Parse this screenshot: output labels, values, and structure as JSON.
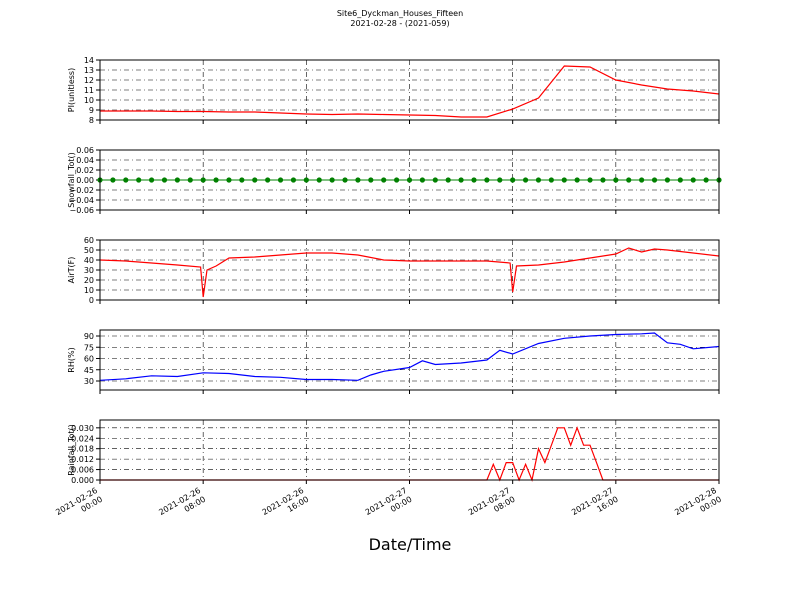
{
  "chart_data": [
    {
      "type": "line",
      "title": "Site6_Dyckman_Houses_Fifteen",
      "subtitle": "2021-02-28 - (2021-059)",
      "ylabel": "PI(unitless)",
      "xlim": [
        "2021-02-26 00:00",
        "2021-02-28 00:00"
      ],
      "xticks": [
        "2021-02-26 00:00",
        "2021-02-26 08:00",
        "2021-02-26 16:00",
        "2021-02-27 00:00",
        "2021-02-27 08:00",
        "2021-02-27 16:00",
        "2021-02-28 00:00"
      ],
      "ylim": [
        8,
        14
      ],
      "yticks": [
        8,
        9,
        10,
        11,
        12,
        13,
        14
      ],
      "grid": true,
      "x": [
        "2021-02-26 00:00",
        "2021-02-26 02:00",
        "2021-02-26 04:00",
        "2021-02-26 06:00",
        "2021-02-26 08:00",
        "2021-02-26 10:00",
        "2021-02-26 12:00",
        "2021-02-26 14:00",
        "2021-02-26 16:00",
        "2021-02-26 18:00",
        "2021-02-26 20:00",
        "2021-02-26 22:00",
        "2021-02-27 00:00",
        "2021-02-27 02:00",
        "2021-02-27 04:00",
        "2021-02-27 06:00",
        "2021-02-27 08:00",
        "2021-02-27 10:00",
        "2021-02-27 12:00",
        "2021-02-27 14:00",
        "2021-02-27 16:00",
        "2021-02-27 18:00",
        "2021-02-27 20:00",
        "2021-02-27 22:00",
        "2021-02-28 00:00"
      ],
      "series": [
        {
          "color": "#ff0000",
          "marker": false,
          "values": [
            8.9,
            8.9,
            8.9,
            8.85,
            8.85,
            8.8,
            8.8,
            8.7,
            8.6,
            8.55,
            8.6,
            8.55,
            8.5,
            8.45,
            8.3,
            8.3,
            9.1,
            10.2,
            13.4,
            13.3,
            12.0,
            11.5,
            11.1,
            10.9,
            10.6
          ]
        }
      ]
    },
    {
      "type": "line",
      "ylabel": "Snowfall_Tot()",
      "xlim": [
        "2021-02-26 00:00",
        "2021-02-28 00:00"
      ],
      "xticks": [
        "2021-02-26 00:00",
        "2021-02-26 08:00",
        "2021-02-26 16:00",
        "2021-02-27 00:00",
        "2021-02-27 08:00",
        "2021-02-27 16:00",
        "2021-02-28 00:00"
      ],
      "ylim": [
        -0.06,
        0.06
      ],
      "yticks": [
        {
          "value": -0.06,
          "label": "−0.06"
        },
        {
          "value": -0.04,
          "label": "−0.04"
        },
        {
          "value": -0.02,
          "label": "−0.02"
        },
        {
          "value": 0,
          "label": "0.00"
        },
        0.02,
        0.04,
        0.06
      ],
      "grid": true,
      "x": [
        "2021-02-26 00:00",
        "2021-02-26 01:00",
        "2021-02-26 02:00",
        "2021-02-26 03:00",
        "2021-02-26 04:00",
        "2021-02-26 05:00",
        "2021-02-26 06:00",
        "2021-02-26 07:00",
        "2021-02-26 08:00",
        "2021-02-26 09:00",
        "2021-02-26 10:00",
        "2021-02-26 11:00",
        "2021-02-26 12:00",
        "2021-02-26 13:00",
        "2021-02-26 14:00",
        "2021-02-26 15:00",
        "2021-02-26 16:00",
        "2021-02-26 17:00",
        "2021-02-26 18:00",
        "2021-02-26 19:00",
        "2021-02-26 20:00",
        "2021-02-26 21:00",
        "2021-02-26 22:00",
        "2021-02-26 23:00",
        "2021-02-27 00:00",
        "2021-02-27 01:00",
        "2021-02-27 02:00",
        "2021-02-27 03:00",
        "2021-02-27 04:00",
        "2021-02-27 05:00",
        "2021-02-27 06:00",
        "2021-02-27 07:00",
        "2021-02-27 08:00",
        "2021-02-27 09:00",
        "2021-02-27 10:00",
        "2021-02-27 11:00",
        "2021-02-27 12:00",
        "2021-02-27 13:00",
        "2021-02-27 14:00",
        "2021-02-27 15:00",
        "2021-02-27 16:00",
        "2021-02-27 17:00",
        "2021-02-27 18:00",
        "2021-02-27 19:00",
        "2021-02-27 20:00",
        "2021-02-27 21:00",
        "2021-02-27 22:00",
        "2021-02-27 23:00",
        "2021-02-28 00:00"
      ],
      "series": [
        {
          "color": "#008000",
          "marker": true,
          "values": [
            0,
            0,
            0,
            0,
            0,
            0,
            0,
            0,
            0,
            0,
            0,
            0,
            0,
            0,
            0,
            0,
            0,
            0,
            0,
            0,
            0,
            0,
            0,
            0,
            0,
            0,
            0,
            0,
            0,
            0,
            0,
            0,
            0,
            0,
            0,
            0,
            0,
            0,
            0,
            0,
            0,
            0,
            0,
            0,
            0,
            0,
            0,
            0,
            0
          ]
        }
      ]
    },
    {
      "type": "line",
      "ylabel": "AirT(F)",
      "xlim": [
        "2021-02-26 00:00",
        "2021-02-28 00:00"
      ],
      "xticks": [
        "2021-02-26 00:00",
        "2021-02-26 08:00",
        "2021-02-26 16:00",
        "2021-02-27 00:00",
        "2021-02-27 08:00",
        "2021-02-27 16:00",
        "2021-02-28 00:00"
      ],
      "ylim": [
        0,
        60
      ],
      "yticks": [
        0,
        10,
        20,
        30,
        40,
        50,
        60
      ],
      "grid": true,
      "x": [
        "2021-02-26 00:00",
        "2021-02-26 02:00",
        "2021-02-26 04:00",
        "2021-02-26 06:00",
        "2021-02-26 07:48",
        "2021-02-26 08:00",
        "2021-02-26 08:18",
        "2021-02-26 09:00",
        "2021-02-26 10:00",
        "2021-02-26 12:00",
        "2021-02-26 14:00",
        "2021-02-26 16:00",
        "2021-02-26 18:00",
        "2021-02-26 20:00",
        "2021-02-26 22:00",
        "2021-02-27 00:00",
        "2021-02-27 02:00",
        "2021-02-27 04:00",
        "2021-02-27 06:00",
        "2021-02-27 07:48",
        "2021-02-27 08:00",
        "2021-02-27 08:18",
        "2021-02-27 10:00",
        "2021-02-27 12:00",
        "2021-02-27 14:00",
        "2021-02-27 16:00",
        "2021-02-27 17:00",
        "2021-02-27 18:00",
        "2021-02-27 19:00",
        "2021-02-27 20:00",
        "2021-02-27 22:00",
        "2021-02-28 00:00"
      ],
      "series": [
        {
          "color": "#ff0000",
          "marker": false,
          "values": [
            40,
            39,
            37,
            35,
            33,
            3,
            30,
            34,
            42,
            43,
            45,
            47,
            47,
            45,
            40,
            39,
            39,
            39,
            39,
            37,
            8,
            34,
            35,
            38,
            42,
            46,
            52,
            48,
            51,
            50,
            47,
            44
          ]
        }
      ]
    },
    {
      "type": "line",
      "ylabel": "RH(%)",
      "xlim": [
        "2021-02-26 00:00",
        "2021-02-28 00:00"
      ],
      "xticks": [
        "2021-02-26 00:00",
        "2021-02-26 08:00",
        "2021-02-26 16:00",
        "2021-02-27 00:00",
        "2021-02-27 08:00",
        "2021-02-27 16:00",
        "2021-02-28 00:00"
      ],
      "ylim": [
        18,
        98
      ],
      "yticks": [
        30,
        45,
        60,
        75,
        90
      ],
      "grid": true,
      "x": [
        "2021-02-26 00:00",
        "2021-02-26 02:00",
        "2021-02-26 04:00",
        "2021-02-26 06:00",
        "2021-02-26 08:00",
        "2021-02-26 10:00",
        "2021-02-26 12:00",
        "2021-02-26 14:00",
        "2021-02-26 16:00",
        "2021-02-26 18:00",
        "2021-02-26 20:00",
        "2021-02-26 21:00",
        "2021-02-26 22:00",
        "2021-02-27 00:00",
        "2021-02-27 01:00",
        "2021-02-27 02:00",
        "2021-02-27 04:00",
        "2021-02-27 06:00",
        "2021-02-27 07:00",
        "2021-02-27 08:00",
        "2021-02-27 10:00",
        "2021-02-27 12:00",
        "2021-02-27 14:00",
        "2021-02-27 16:00",
        "2021-02-27 18:00",
        "2021-02-27 19:00",
        "2021-02-27 20:00",
        "2021-02-27 21:00",
        "2021-02-27 22:00",
        "2021-02-28 00:00"
      ],
      "series": [
        {
          "color": "#0000ff",
          "marker": false,
          "values": [
            31,
            33,
            37,
            36,
            41,
            40,
            36,
            35,
            32,
            32,
            31,
            38,
            43,
            48,
            57,
            52,
            54,
            58,
            71,
            66,
            80,
            87,
            90,
            92,
            93,
            94,
            81,
            79,
            73,
            76
          ]
        }
      ]
    },
    {
      "type": "line",
      "ylabel": "Rainfall_Tot()",
      "xlabel": "Date/Time",
      "xlim": [
        "2021-02-26 00:00",
        "2021-02-28 00:00"
      ],
      "xticks": [
        {
          "value": "2021-02-26 00:00",
          "label": "2021-02-26\n00:00"
        },
        {
          "value": "2021-02-26 08:00",
          "label": "2021-02-26\n08:00"
        },
        {
          "value": "2021-02-26 16:00",
          "label": "2021-02-26\n16:00"
        },
        {
          "value": "2021-02-27 00:00",
          "label": "2021-02-27\n00:00"
        },
        {
          "value": "2021-02-27 08:00",
          "label": "2021-02-27\n08:00"
        },
        {
          "value": "2021-02-27 16:00",
          "label": "2021-02-27\n16:00"
        },
        {
          "value": "2021-02-28 00:00",
          "label": "2021-02-28\n00:00"
        }
      ],
      "ylim": [
        0,
        0.0345
      ],
      "yticks": [
        {
          "value": 0,
          "label": "0.000"
        },
        {
          "value": 0.006,
          "label": "0.006"
        },
        {
          "value": 0.012,
          "label": "0.012"
        },
        {
          "value": 0.018,
          "label": "0.018"
        },
        {
          "value": 0.024,
          "label": "0.024"
        },
        {
          "value": 0.03,
          "label": "0.030"
        }
      ],
      "grid": true,
      "x": [
        "2021-02-26 00:00",
        "2021-02-27 06:00",
        "2021-02-27 06:30",
        "2021-02-27 07:00",
        "2021-02-27 07:30",
        "2021-02-27 08:00",
        "2021-02-27 08:30",
        "2021-02-27 09:00",
        "2021-02-27 09:30",
        "2021-02-27 10:00",
        "2021-02-27 10:30",
        "2021-02-27 11:00",
        "2021-02-27 11:30",
        "2021-02-27 12:00",
        "2021-02-27 12:30",
        "2021-02-27 13:00",
        "2021-02-27 13:30",
        "2021-02-27 14:00",
        "2021-02-27 14:30",
        "2021-02-27 15:00",
        "2021-02-28 00:00"
      ],
      "series": [
        {
          "color": "#ff0000",
          "marker": false,
          "values": [
            0,
            0,
            0.009,
            0,
            0.01,
            0.01,
            0,
            0.009,
            0,
            0.018,
            0.01,
            0.02,
            0.03,
            0.03,
            0.02,
            0.03,
            0.02,
            0.02,
            0.01,
            0,
            0
          ]
        }
      ]
    }
  ]
}
